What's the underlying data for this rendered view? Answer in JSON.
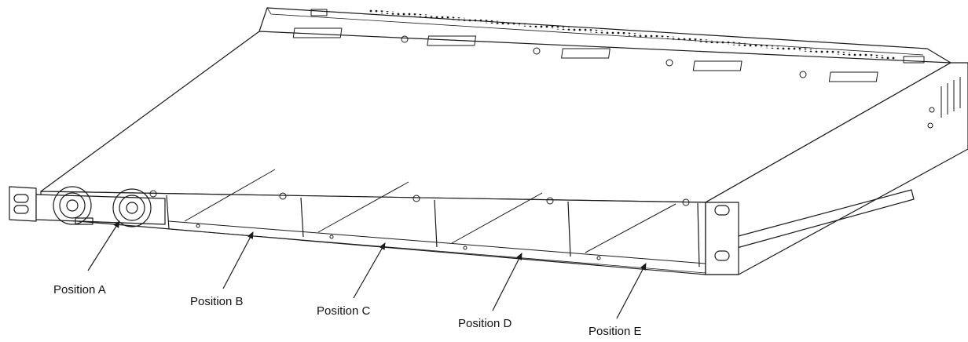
{
  "diagram": {
    "positions": [
      {
        "id": "A",
        "label": "Position A"
      },
      {
        "id": "B",
        "label": "Position B"
      },
      {
        "id": "C",
        "label": "Position C"
      },
      {
        "id": "D",
        "label": "Position D"
      },
      {
        "id": "E",
        "label": "Position E"
      }
    ],
    "colors": {
      "line": "#1a1a1a",
      "background": "#ffffff",
      "chassis_fill": "#ffffff"
    }
  }
}
